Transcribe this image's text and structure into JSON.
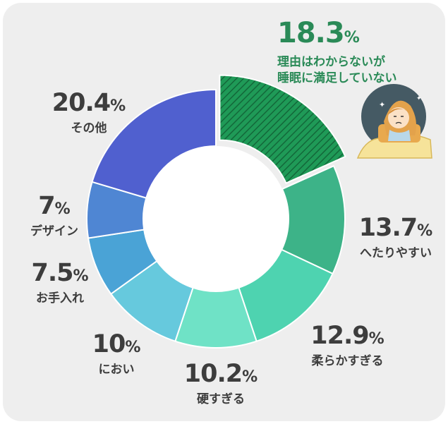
{
  "chart_data": {
    "type": "pie",
    "donut": true,
    "slices": [
      {
        "label": "理由はわからないが\n睡眠に満足していない",
        "value": 18.3,
        "display": "18.3",
        "unit": "%",
        "color": "#1f9a57",
        "hatched": true,
        "highlighted": true
      },
      {
        "label": "へたりやすい",
        "value": 13.7,
        "display": "13.7",
        "unit": "%",
        "color": "#3db388"
      },
      {
        "label": "柔らかすぎる",
        "value": 12.9,
        "display": "12.9",
        "unit": "%",
        "color": "#4ed3b0"
      },
      {
        "label": "硬すぎる",
        "value": 10.2,
        "display": "10.2",
        "unit": "%",
        "color": "#6fe2c6"
      },
      {
        "label": "におい",
        "value": 10,
        "display": "10",
        "unit": "%",
        "color": "#66c9dd"
      },
      {
        "label": "お手入れ",
        "value": 7.5,
        "display": "7.5",
        "unit": "%",
        "color": "#4aa3d6"
      },
      {
        "label": "デザイン",
        "value": 7,
        "display": "7",
        "unit": "%",
        "color": "#4f86d3"
      },
      {
        "label": "その他",
        "value": 20.4,
        "display": "20.4",
        "unit": "%",
        "color": "#5060cf"
      }
    ]
  }
}
